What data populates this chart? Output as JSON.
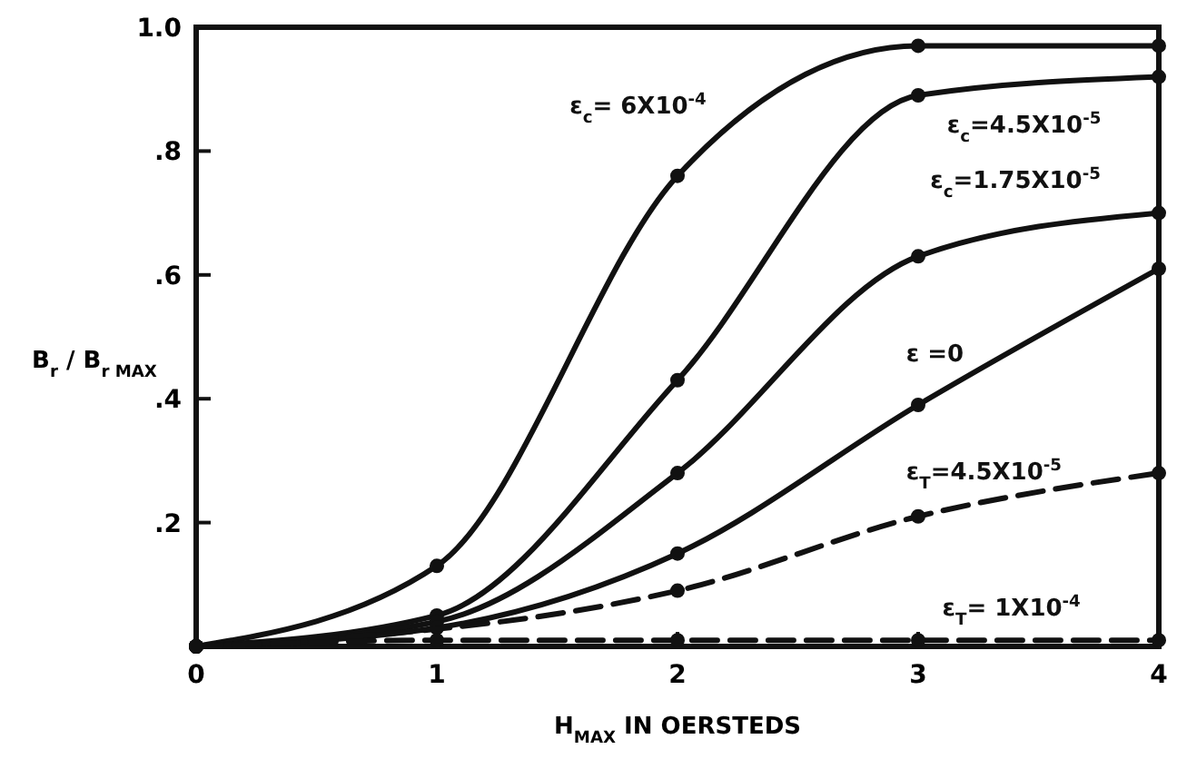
{
  "chart_data": {
    "type": "line",
    "xlabel": "H$_{MAX}$  IN OERSTEDS",
    "ylabel": "B$_{r}$ / B$_{r MAX}$",
    "x": [
      0,
      1,
      2,
      3,
      4
    ],
    "xlim": [
      0,
      4
    ],
    "xticks": [
      0,
      1,
      2,
      3,
      4
    ],
    "ylim": [
      0,
      1
    ],
    "yticks": [
      {
        "value": 0.2,
        "label": ".2"
      },
      {
        "value": 0.4,
        "label": ".4"
      },
      {
        "value": 0.6,
        "label": ".6"
      },
      {
        "value": 0.8,
        "label": ".8"
      },
      {
        "value": 1,
        "label": "1.0"
      }
    ],
    "grid": false,
    "marker": "circle",
    "series": [
      {
        "name": "ε$_{c}$= 6X10$^{-4}$",
        "color": "#111111",
        "values": [
          0,
          0.13,
          0.76,
          0.97,
          0.97
        ],
        "line_style": "solid"
      },
      {
        "name": "ε$_{c}$=4.5X10$^{-5}$",
        "color": "#111111",
        "values": [
          0,
          0.05,
          0.43,
          0.89,
          0.92
        ],
        "line_style": "solid"
      },
      {
        "name": "ε$_{c}$=1.75X10$^{-5}$",
        "color": "#111111",
        "values": [
          0,
          0.04,
          0.28,
          0.63,
          0.7
        ],
        "line_style": "solid"
      },
      {
        "name": "ε =0",
        "color": "#111111",
        "values": [
          0,
          0.03,
          0.15,
          0.39,
          0.61
        ],
        "line_style": "solid"
      },
      {
        "name": "ε$_{T}$=4.5X10$^{-5}$",
        "color": "#111111",
        "values": [
          0,
          null,
          0.09,
          0.21,
          0.28
        ],
        "line_style": "dashed"
      },
      {
        "name": "ε$_{T}$= 1X10$^{-4}$",
        "color": "#111111",
        "values": [
          0,
          0.01,
          0.01,
          0.01,
          0.01
        ],
        "line_style": "dashed"
      }
    ]
  }
}
